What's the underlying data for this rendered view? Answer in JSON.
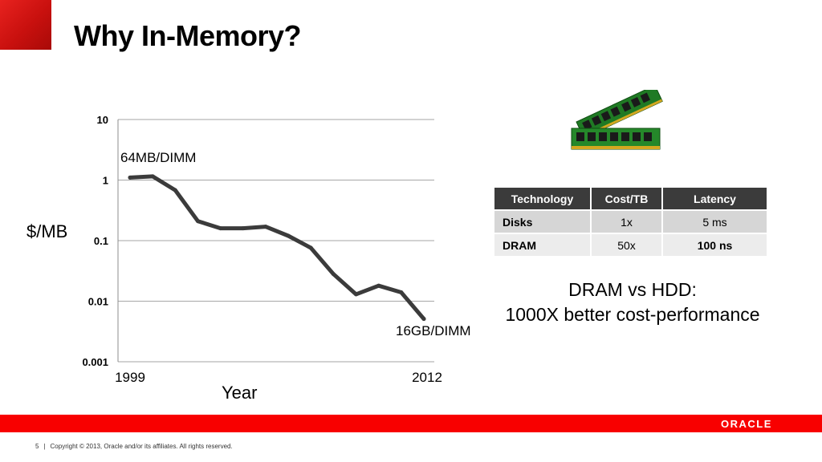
{
  "slide": {
    "title": "Why In-Memory?",
    "chart_annotations": {
      "start": "64MB/DIMM",
      "end": "16GB/DIMM"
    },
    "table": {
      "headers": [
        "Technology",
        "Cost/TB",
        "Latency"
      ],
      "rows": [
        [
          "Disks",
          "1x",
          "5 ms"
        ],
        [
          "DRAM",
          "50x",
          "100 ns"
        ]
      ]
    },
    "callout": {
      "line1": "DRAM vs HDD:",
      "line2": "1000X better cost-performance"
    },
    "brand": "ORACLE",
    "footer": {
      "page": "5",
      "copyright": "Copyright © 2013, Oracle and/or its affiliates. All rights reserved."
    },
    "ram_image": "ram-dimm-modules-icon"
  },
  "colors": {
    "accent_red": "#f80000",
    "line": "#3b3b3b",
    "table_header": "#3b3b3b"
  },
  "chart_data": {
    "type": "line",
    "title": "",
    "xlabel": "Year",
    "ylabel": "$/MB",
    "y_scale": "log",
    "ylim": [
      0.001,
      10
    ],
    "y_ticks": [
      "10",
      "1",
      "0.1",
      "0.01",
      "0.001"
    ],
    "x_tick_labels": [
      "1999",
      "2012"
    ],
    "grid": true,
    "legend": "none",
    "series": [
      {
        "x": [
          1999,
          2000,
          2001,
          2002,
          2003,
          2004,
          2005,
          2006,
          2007,
          2008,
          2009,
          2010,
          2011,
          2012
        ],
        "values": [
          1.1,
          1.15,
          0.68,
          0.21,
          0.16,
          0.16,
          0.17,
          0.12,
          0.076,
          0.028,
          0.013,
          0.018,
          0.014,
          0.0051
        ]
      }
    ]
  }
}
